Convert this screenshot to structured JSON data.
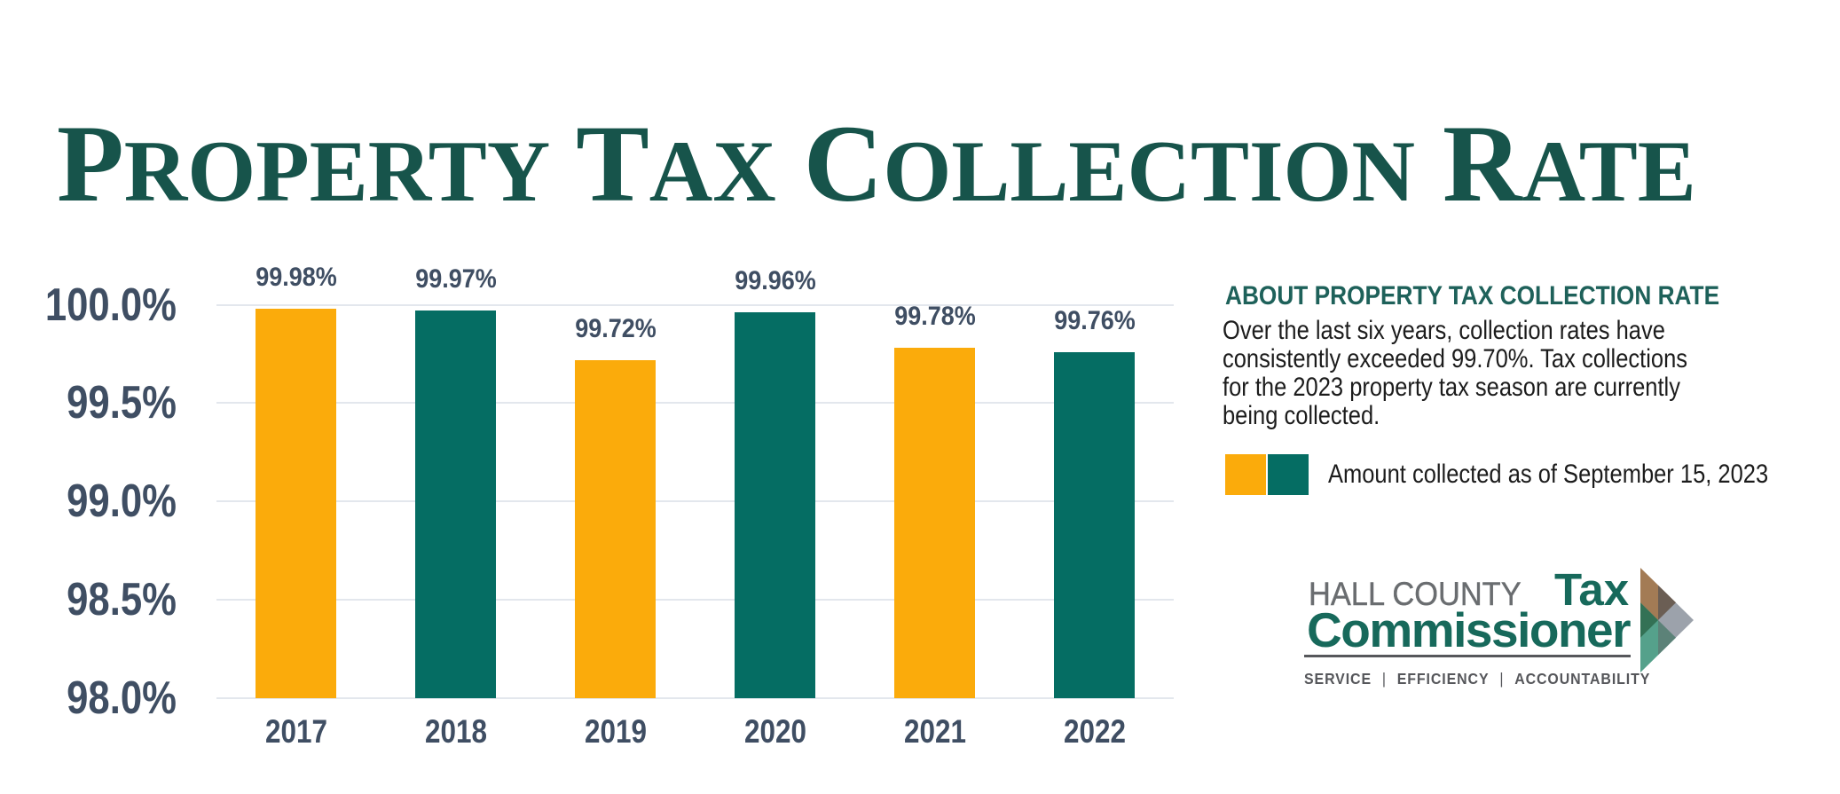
{
  "title": "Property Tax Collection Rate",
  "colors": {
    "title_green": "#17544B",
    "axis_text": "#3F4E63",
    "grid_line": "#E3E7ED",
    "bar_orange": "#FBAB0B",
    "bar_teal": "#056D63",
    "heading_teal": "#1E615A",
    "body_text": "#1C1C1C",
    "logo_gray": "#6A6D70",
    "logo_green": "#17695B",
    "tagline_gray": "#56575B"
  },
  "chart_data": {
    "type": "bar",
    "title": "Property Tax Collection Rate",
    "categories": [
      "2017",
      "2018",
      "2019",
      "2020",
      "2021",
      "2022"
    ],
    "values": [
      99.98,
      99.97,
      99.72,
      99.96,
      99.78,
      99.76
    ],
    "value_labels": [
      "99.98%",
      "99.97%",
      "99.72%",
      "99.96%",
      "99.78%",
      "99.76%"
    ],
    "bar_colors": [
      "#FBAB0B",
      "#056D63",
      "#FBAB0B",
      "#056D63",
      "#FBAB0B",
      "#056D63"
    ],
    "xlabel": "",
    "ylabel": "",
    "ylim": [
      98.0,
      100.0
    ],
    "yticks": [
      {
        "value": 100.0,
        "label": "100.0%"
      },
      {
        "value": 99.5,
        "label": "99.5%"
      },
      {
        "value": 99.0,
        "label": "99.0%"
      },
      {
        "value": 98.5,
        "label": "98.5%"
      },
      {
        "value": 98.0,
        "label": "98.0%"
      }
    ],
    "grid": true,
    "legend": [
      {
        "label": "Amount collected as of September 15, 2023",
        "colors": [
          "#FBAB0B",
          "#056D63"
        ]
      }
    ]
  },
  "about": {
    "heading": "ABOUT PROPERTY TAX COLLECTION RATE",
    "body_lines": [
      "Over the last six years, collection rates have",
      "consistently exceeded 99.70%. Tax collections",
      "for the 2023 property tax season are currently",
      "being collected."
    ],
    "legend_label": "Amount collected as of September 15, 2023"
  },
  "logo": {
    "name_line1_gray": "HALL COUNTY",
    "name_line1_green": "Tax",
    "name_line2": "Commissioner",
    "tagline": [
      "SERVICE",
      "EFFICIENCY",
      "ACCOUNTABILITY"
    ],
    "tagline_separator": "|",
    "arrow": {
      "brown": "#A37B55",
      "dark_brown": "#6B5E54",
      "green": "#337155",
      "teal": "#55A18B",
      "dark_teal": "#5C8278",
      "gray": "#9CA2AB"
    }
  }
}
